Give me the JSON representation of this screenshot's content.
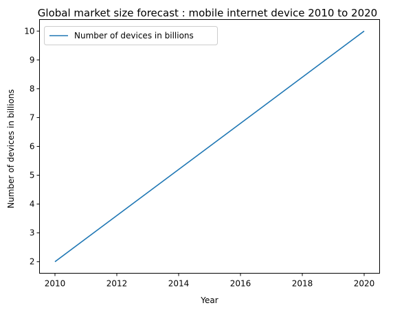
{
  "chart_data": {
    "type": "line",
    "title": "Global market size forecast : mobile internet device 2010 to 2020",
    "xlabel": "Year",
    "ylabel": "Number of devices in billions",
    "x": [
      2010,
      2020
    ],
    "series": [
      {
        "name": "Number of devices in billions",
        "values": [
          2,
          10
        ],
        "color": "#1f77b4"
      }
    ],
    "xticks": [
      2010,
      2012,
      2014,
      2016,
      2018,
      2020
    ],
    "yticks": [
      2,
      3,
      4,
      5,
      6,
      7,
      8,
      9,
      10
    ],
    "xlim": [
      2009.5,
      2020.5
    ],
    "ylim": [
      1.6,
      10.4
    ],
    "grid": false,
    "legend_position": "top-left"
  }
}
